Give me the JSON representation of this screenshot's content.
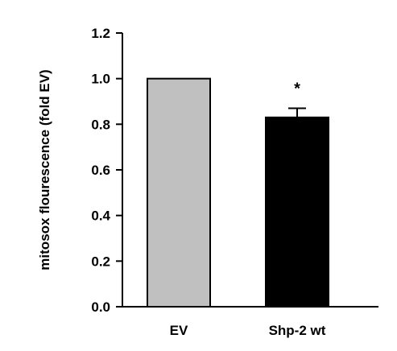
{
  "chart_data": {
    "type": "bar",
    "title": "",
    "xlabel": "",
    "ylabel": "mitosox flourescence (fold EV)",
    "ylim": [
      0,
      1.2
    ],
    "yticks": [
      "0.0",
      "0.2",
      "0.4",
      "0.6",
      "0.8",
      "1.0",
      "1.2"
    ],
    "categories": [
      "EV",
      "Shp-2 wt"
    ],
    "values": [
      1.0,
      0.83
    ],
    "errors": [
      0,
      0.04
    ],
    "colors": [
      "#c0c0c0",
      "#000000"
    ],
    "annotations": [
      "",
      "*"
    ],
    "grid": false,
    "legend": "none"
  }
}
